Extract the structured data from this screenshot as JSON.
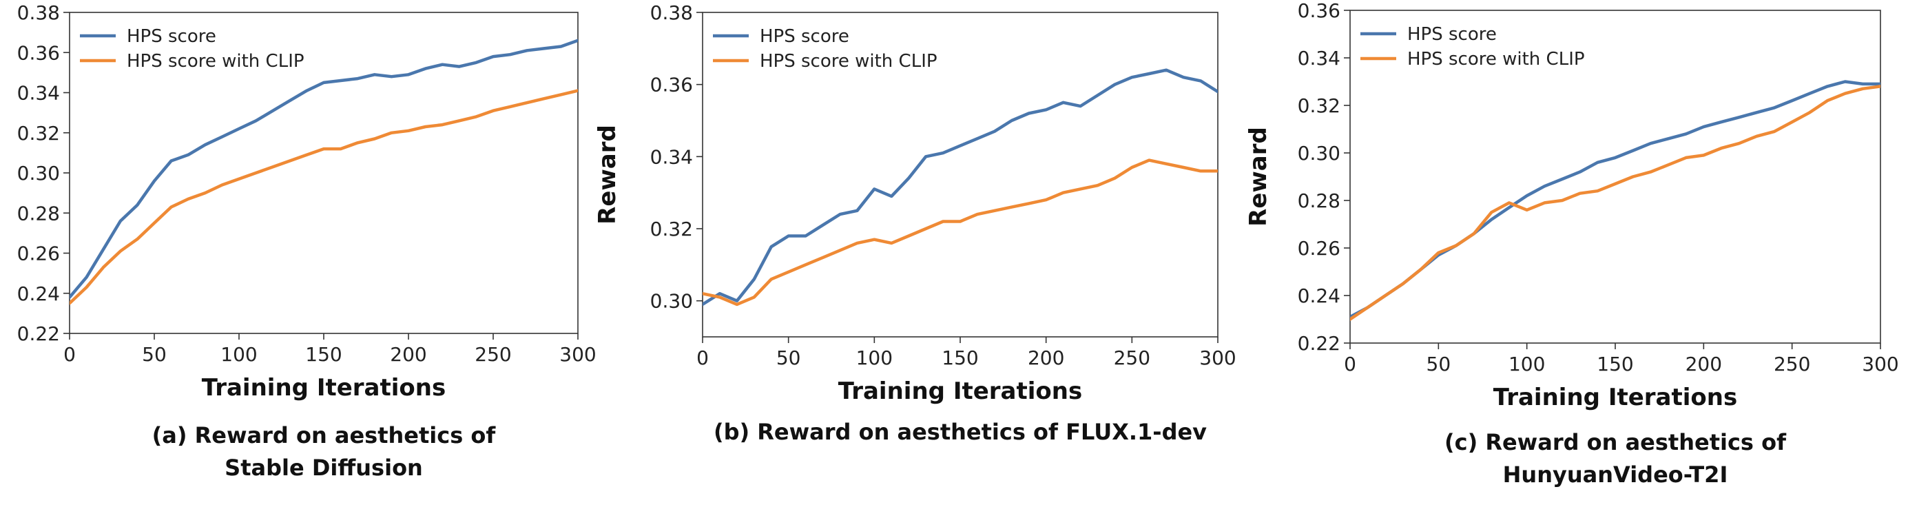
{
  "colors": {
    "hps": "#4a77ad",
    "clip": "#ef8a35"
  },
  "chart_data": [
    {
      "type": "line",
      "title": "",
      "xlabel": "Training Iterations",
      "ylabel": "",
      "xlim": [
        0,
        300
      ],
      "ylim": [
        0.22,
        0.38
      ],
      "xticks": [
        0,
        50,
        100,
        150,
        200,
        250,
        300
      ],
      "yticks": [
        0.22,
        0.24,
        0.26,
        0.28,
        0.3,
        0.32,
        0.34,
        0.36,
        0.38
      ],
      "yticklabels": [
        "0.22",
        "0.24",
        "0.26",
        "0.28",
        "0.30",
        "0.32",
        "0.34",
        "0.36",
        "0.38"
      ],
      "legend_position": "top-left",
      "caption": [
        "(a) Reward on aesthetics of",
        "Stable Diffusion"
      ],
      "series": [
        {
          "name": "HPS score",
          "color": "#4a77ad",
          "x": [
            0,
            10,
            20,
            30,
            40,
            50,
            60,
            70,
            80,
            90,
            100,
            110,
            120,
            130,
            140,
            150,
            160,
            170,
            180,
            190,
            200,
            210,
            220,
            230,
            240,
            250,
            260,
            270,
            280,
            290,
            300
          ],
          "y": [
            0.238,
            0.248,
            0.262,
            0.276,
            0.284,
            0.296,
            0.306,
            0.309,
            0.314,
            0.318,
            0.322,
            0.326,
            0.331,
            0.336,
            0.341,
            0.345,
            0.346,
            0.347,
            0.349,
            0.348,
            0.349,
            0.352,
            0.354,
            0.353,
            0.355,
            0.358,
            0.359,
            0.361,
            0.362,
            0.363,
            0.366
          ]
        },
        {
          "name": "HPS score with CLIP",
          "color": "#ef8a35",
          "x": [
            0,
            10,
            20,
            30,
            40,
            50,
            60,
            70,
            80,
            90,
            100,
            110,
            120,
            130,
            140,
            150,
            160,
            170,
            180,
            190,
            200,
            210,
            220,
            230,
            240,
            250,
            260,
            270,
            280,
            290,
            300
          ],
          "y": [
            0.235,
            0.243,
            0.253,
            0.261,
            0.267,
            0.275,
            0.283,
            0.287,
            0.29,
            0.294,
            0.297,
            0.3,
            0.303,
            0.306,
            0.309,
            0.312,
            0.312,
            0.315,
            0.317,
            0.32,
            0.321,
            0.323,
            0.324,
            0.326,
            0.328,
            0.331,
            0.333,
            0.335,
            0.337,
            0.339,
            0.341
          ]
        }
      ]
    },
    {
      "type": "line",
      "title": "",
      "xlabel": "Training Iterations",
      "ylabel": "Reward",
      "xlim": [
        0,
        300
      ],
      "ylim": [
        0.29,
        0.38
      ],
      "xticks": [
        0,
        50,
        100,
        150,
        200,
        250,
        300
      ],
      "yticks": [
        0.3,
        0.32,
        0.34,
        0.36,
        0.38
      ],
      "yticklabels": [
        "0.30",
        "0.32",
        "0.34",
        "0.36",
        "0.38"
      ],
      "legend_position": "top-left",
      "caption": [
        "(b) Reward on aesthetics of FLUX.1-dev"
      ],
      "series": [
        {
          "name": "HPS score",
          "color": "#4a77ad",
          "x": [
            0,
            10,
            20,
            30,
            40,
            50,
            60,
            70,
            80,
            90,
            100,
            110,
            120,
            130,
            140,
            150,
            160,
            170,
            180,
            190,
            200,
            210,
            220,
            230,
            240,
            250,
            260,
            270,
            280,
            290,
            300
          ],
          "y": [
            0.299,
            0.302,
            0.3,
            0.306,
            0.315,
            0.318,
            0.318,
            0.321,
            0.324,
            0.325,
            0.331,
            0.329,
            0.334,
            0.34,
            0.341,
            0.343,
            0.345,
            0.347,
            0.35,
            0.352,
            0.353,
            0.355,
            0.354,
            0.357,
            0.36,
            0.362,
            0.363,
            0.364,
            0.362,
            0.361,
            0.358
          ]
        },
        {
          "name": "HPS score with CLIP",
          "color": "#ef8a35",
          "x": [
            0,
            10,
            20,
            30,
            40,
            50,
            60,
            70,
            80,
            90,
            100,
            110,
            120,
            130,
            140,
            150,
            160,
            170,
            180,
            190,
            200,
            210,
            220,
            230,
            240,
            250,
            260,
            270,
            280,
            290,
            300
          ],
          "y": [
            0.302,
            0.301,
            0.299,
            0.301,
            0.306,
            0.308,
            0.31,
            0.312,
            0.314,
            0.316,
            0.317,
            0.316,
            0.318,
            0.32,
            0.322,
            0.322,
            0.324,
            0.325,
            0.326,
            0.327,
            0.328,
            0.33,
            0.331,
            0.332,
            0.334,
            0.337,
            0.339,
            0.338,
            0.337,
            0.336,
            0.336
          ]
        }
      ]
    },
    {
      "type": "line",
      "title": "",
      "xlabel": "Training Iterations",
      "ylabel": "Reward",
      "xlim": [
        0,
        300
      ],
      "ylim": [
        0.22,
        0.36
      ],
      "xticks": [
        0,
        50,
        100,
        150,
        200,
        250,
        300
      ],
      "yticks": [
        0.22,
        0.24,
        0.26,
        0.28,
        0.3,
        0.32,
        0.34,
        0.36
      ],
      "yticklabels": [
        "0.22",
        "0.24",
        "0.26",
        "0.28",
        "0.30",
        "0.32",
        "0.34",
        "0.36"
      ],
      "legend_position": "top-left",
      "caption": [
        "(c) Reward on aesthetics of",
        "HunyuanVideo-T2I"
      ],
      "series": [
        {
          "name": "HPS score",
          "color": "#4a77ad",
          "x": [
            0,
            10,
            20,
            30,
            40,
            50,
            60,
            70,
            80,
            90,
            100,
            110,
            120,
            130,
            140,
            150,
            160,
            170,
            180,
            190,
            200,
            210,
            220,
            230,
            240,
            250,
            260,
            270,
            280,
            290,
            300
          ],
          "y": [
            0.231,
            0.235,
            0.24,
            0.245,
            0.251,
            0.257,
            0.261,
            0.266,
            0.272,
            0.277,
            0.282,
            0.286,
            0.289,
            0.292,
            0.296,
            0.298,
            0.301,
            0.304,
            0.306,
            0.308,
            0.311,
            0.313,
            0.315,
            0.317,
            0.319,
            0.322,
            0.325,
            0.328,
            0.33,
            0.329,
            0.329
          ]
        },
        {
          "name": "HPS score with CLIP",
          "color": "#ef8a35",
          "x": [
            0,
            10,
            20,
            30,
            40,
            50,
            60,
            70,
            80,
            90,
            100,
            110,
            120,
            130,
            140,
            150,
            160,
            170,
            180,
            190,
            200,
            210,
            220,
            230,
            240,
            250,
            260,
            270,
            280,
            290,
            300
          ],
          "y": [
            0.23,
            0.235,
            0.24,
            0.245,
            0.251,
            0.258,
            0.261,
            0.266,
            0.275,
            0.279,
            0.276,
            0.279,
            0.28,
            0.283,
            0.284,
            0.287,
            0.29,
            0.292,
            0.295,
            0.298,
            0.299,
            0.302,
            0.304,
            0.307,
            0.309,
            0.313,
            0.317,
            0.322,
            0.325,
            0.327,
            0.328
          ]
        }
      ]
    }
  ]
}
